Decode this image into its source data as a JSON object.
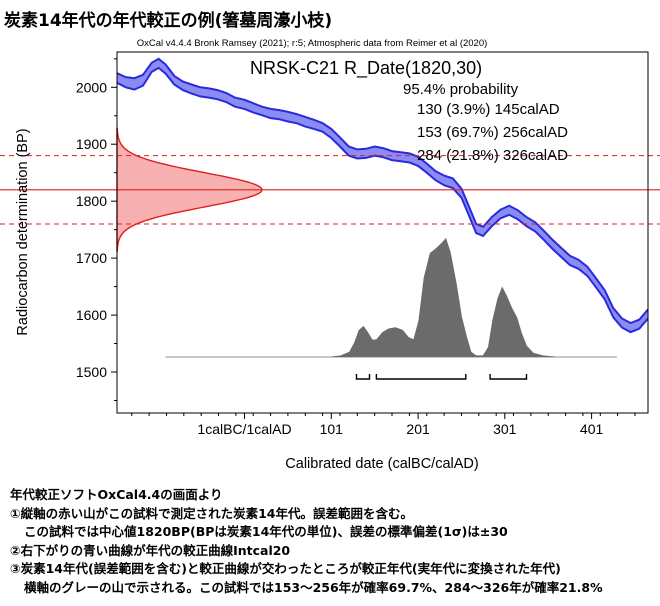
{
  "title": "炭素14年代の年代較正の例(箸墓周濠小枝)",
  "notes": [
    "年代較正ソフトOxCal4.4の画面より",
    "①縦軸の赤い山がこの試料で測定された炭素14年代。誤差範囲を含む。",
    "この試料では中心値1820BP(BPは炭素14年代の単位)、誤差の標準偏差(1σ)は±30",
    "②右下がりの青い曲線が年代の較正曲線Intcal20",
    "③炭素14年代(誤差範囲を含む)と較正曲線が交わったところが較正年代(実年代に変換された年代)",
    "横軸のグレーの山で示される。この試料では153～256年が確率69.7%、284～326年が確率21.8%"
  ],
  "chart_data": {
    "type": "area",
    "subtitle": "OxCal v4.4.4 Bronk Ramsey (2021); r:5; Atmospheric data from Reimer et al (2020)",
    "sample_label": "NRSK-C21 R_Date(1820,30)",
    "probability_heading": "95.4% probability",
    "ranges_text": [
      "130 (3.9%) 145calAD",
      "153 (69.7%) 256calAD",
      "284 (21.8%) 326calAD"
    ],
    "ranges": [
      [
        130,
        145
      ],
      [
        153,
        256
      ],
      [
        284,
        326
      ]
    ],
    "xlabel": "Calibrated date (calBC/calAD)",
    "ylabel": "Radiocarbon determination (BP)",
    "xlim": [
      -146,
      466
    ],
    "ylim": [
      1428,
      2062
    ],
    "x_ticks": [
      {
        "value": 1,
        "label": "1calBC/1calAD"
      },
      {
        "value": 101,
        "label": "101"
      },
      {
        "value": 201,
        "label": "201"
      },
      {
        "value": 301,
        "label": "301"
      },
      {
        "value": 401,
        "label": "401"
      }
    ],
    "y_ticks": [
      1500,
      1600,
      1700,
      1800,
      1900,
      2000
    ],
    "measurement": {
      "mean": 1820,
      "sigma": 30
    },
    "calibration_curve": {
      "name": "IntCal20",
      "color": "#2a2add",
      "fill": "#8b8bf4",
      "points": [
        [
          -146,
          2025,
          2008
        ],
        [
          -136,
          2018,
          2000
        ],
        [
          -126,
          2016,
          1996
        ],
        [
          -116,
          2022,
          2003
        ],
        [
          -106,
          2043,
          2027
        ],
        [
          -98,
          2050,
          2034
        ],
        [
          -90,
          2040,
          2024
        ],
        [
          -80,
          2020,
          2005
        ],
        [
          -70,
          2010,
          1995
        ],
        [
          -60,
          2005,
          1989
        ],
        [
          -50,
          2000,
          1984
        ],
        [
          -40,
          1998,
          1982
        ],
        [
          -30,
          1995,
          1979
        ],
        [
          -20,
          1990,
          1974
        ],
        [
          -10,
          1982,
          1966
        ],
        [
          1,
          1978,
          1962
        ],
        [
          11,
          1972,
          1956
        ],
        [
          21,
          1966,
          1951
        ],
        [
          31,
          1962,
          1946
        ],
        [
          41,
          1960,
          1944
        ],
        [
          51,
          1957,
          1940
        ],
        [
          61,
          1953,
          1937
        ],
        [
          71,
          1948,
          1931
        ],
        [
          81,
          1943,
          1927
        ],
        [
          91,
          1937,
          1922
        ],
        [
          101,
          1927,
          1911
        ],
        [
          111,
          1912,
          1896
        ],
        [
          121,
          1896,
          1880
        ],
        [
          131,
          1891,
          1875
        ],
        [
          141,
          1892,
          1876
        ],
        [
          151,
          1896,
          1880
        ],
        [
          161,
          1893,
          1877
        ],
        [
          171,
          1888,
          1872
        ],
        [
          181,
          1886,
          1870
        ],
        [
          191,
          1884,
          1868
        ],
        [
          201,
          1878,
          1862
        ],
        [
          211,
          1866,
          1850
        ],
        [
          221,
          1853,
          1837
        ],
        [
          231,
          1845,
          1828
        ],
        [
          241,
          1840,
          1823
        ],
        [
          251,
          1822,
          1806
        ],
        [
          261,
          1786,
          1770
        ],
        [
          268,
          1760,
          1744
        ],
        [
          276,
          1755,
          1739
        ],
        [
          286,
          1772,
          1756
        ],
        [
          296,
          1785,
          1770
        ],
        [
          306,
          1792,
          1776
        ],
        [
          316,
          1784,
          1768
        ],
        [
          326,
          1772,
          1756
        ],
        [
          336,
          1763,
          1747
        ],
        [
          346,
          1748,
          1732
        ],
        [
          356,
          1732,
          1716
        ],
        [
          366,
          1718,
          1702
        ],
        [
          376,
          1704,
          1688
        ],
        [
          386,
          1697,
          1681
        ],
        [
          396,
          1685,
          1669
        ],
        [
          406,
          1665,
          1649
        ],
        [
          416,
          1644,
          1628
        ],
        [
          426,
          1612,
          1596
        ],
        [
          436,
          1594,
          1578
        ],
        [
          446,
          1586,
          1570
        ],
        [
          456,
          1592,
          1576
        ],
        [
          466,
          1610,
          1594
        ]
      ]
    },
    "calibrated_distribution": {
      "color": "#6b6b6b",
      "points": [
        [
          -90,
          0
        ],
        [
          100,
          0
        ],
        [
          112,
          0.01
        ],
        [
          122,
          0.04
        ],
        [
          128,
          0.12
        ],
        [
          133,
          0.22
        ],
        [
          138,
          0.25
        ],
        [
          143,
          0.2
        ],
        [
          148,
          0.14
        ],
        [
          153,
          0.14
        ],
        [
          160,
          0.2
        ],
        [
          167,
          0.23
        ],
        [
          175,
          0.24
        ],
        [
          183,
          0.22
        ],
        [
          190,
          0.16
        ],
        [
          196,
          0.14
        ],
        [
          202,
          0.3
        ],
        [
          208,
          0.65
        ],
        [
          215,
          0.85
        ],
        [
          222,
          0.89
        ],
        [
          228,
          0.93
        ],
        [
          233,
          0.97
        ],
        [
          238,
          0.86
        ],
        [
          245,
          0.6
        ],
        [
          251,
          0.33
        ],
        [
          257,
          0.16
        ],
        [
          262,
          0.04
        ],
        [
          268,
          0.01
        ],
        [
          276,
          0.01
        ],
        [
          282,
          0.08
        ],
        [
          287,
          0.3
        ],
        [
          293,
          0.48
        ],
        [
          298,
          0.57
        ],
        [
          303,
          0.5
        ],
        [
          309,
          0.4
        ],
        [
          315,
          0.32
        ],
        [
          320,
          0.2
        ],
        [
          326,
          0.09
        ],
        [
          334,
          0.03
        ],
        [
          345,
          0.01
        ],
        [
          360,
          0
        ],
        [
          430,
          0
        ]
      ]
    }
  }
}
